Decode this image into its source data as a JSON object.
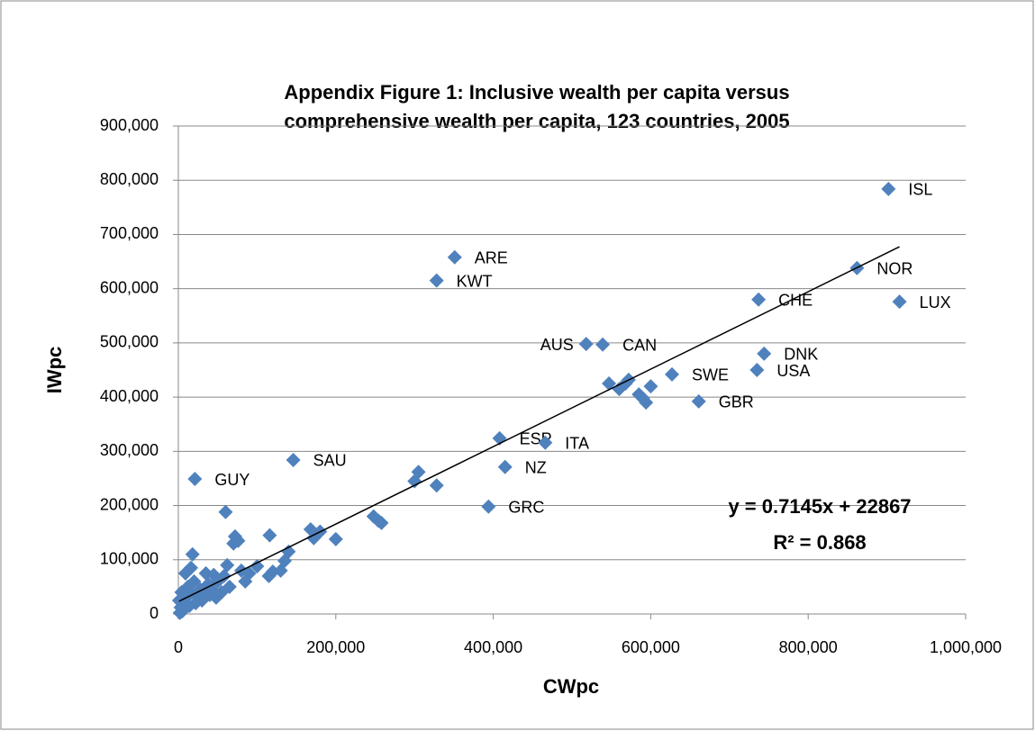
{
  "chart_data": {
    "type": "scatter",
    "title": [
      "Appendix Figure 1:     Inclusive wealth per capita versus",
      "comprehensive wealth per capita, 123 countries, 2005"
    ],
    "x_label": "CWpc",
    "y_label": "IWpc",
    "xlim": [
      0,
      1000000
    ],
    "xticks": [
      {
        "value": 0,
        "label": "0"
      },
      {
        "value": 200000,
        "label": "200,000"
      },
      {
        "value": 400000,
        "label": "400,000"
      },
      {
        "value": 600000,
        "label": "600,000"
      },
      {
        "value": 800000,
        "label": "800,000"
      },
      {
        "value": 1000000,
        "label": "1,000,000"
      }
    ],
    "ylim": [
      0,
      900000
    ],
    "yticks": [
      {
        "value": 0,
        "label": "0"
      },
      {
        "value": 100000,
        "label": "100,000"
      },
      {
        "value": 200000,
        "label": "200,000"
      },
      {
        "value": 300000,
        "label": "300,000"
      },
      {
        "value": 400000,
        "label": "400,000"
      },
      {
        "value": 500000,
        "label": "500,000"
      },
      {
        "value": 600000,
        "label": "600,000"
      },
      {
        "value": 700000,
        "label": "700,000"
      },
      {
        "value": 800000,
        "label": "800,000"
      },
      {
        "value": 900000,
        "label": "900,000"
      }
    ],
    "grid": true,
    "series": [
      {
        "name": "IWpc",
        "color": "#4f81bd",
        "x": [
          902000,
          862000,
          916000,
          737000,
          744000,
          735000,
          627000,
          661000,
          518000,
          539000,
          351000,
          328000,
          408000,
          466000,
          415000,
          394000,
          146000,
          21000,
          547000,
          560000,
          572000,
          568000,
          585000,
          590000,
          594000,
          600000,
          300000,
          305000,
          328000,
          248000,
          254000,
          258000,
          200000,
          180000,
          172000,
          168000,
          140000,
          135000,
          130000,
          120000,
          116000,
          115000,
          100000,
          90000,
          85000,
          80000,
          76000,
          72000,
          70000,
          65000,
          62000,
          60000,
          58000,
          55000,
          50000,
          48000,
          45000,
          42000,
          40000,
          38000,
          35000,
          32000,
          30000,
          28000,
          25000,
          22000,
          20000,
          18000,
          16000,
          15000,
          14000,
          12000,
          10000,
          9000,
          8000,
          6000,
          5000,
          4000,
          3000,
          2000,
          1000
        ],
        "y": [
          784000,
          638000,
          576000,
          580000,
          480000,
          450000,
          442000,
          392000,
          498000,
          497000,
          658000,
          615000,
          324000,
          316000,
          271000,
          198000,
          284000,
          249000,
          425000,
          415000,
          432000,
          425000,
          405000,
          398000,
          390000,
          420000,
          245000,
          262000,
          237000,
          180000,
          172000,
          168000,
          138000,
          152000,
          140000,
          156000,
          115000,
          98000,
          80000,
          78000,
          145000,
          70000,
          88000,
          75000,
          60000,
          80000,
          135000,
          143000,
          130000,
          50000,
          90000,
          188000,
          70000,
          40000,
          60000,
          30000,
          72000,
          45000,
          35000,
          55000,
          75000,
          40000,
          25000,
          45000,
          30000,
          20000,
          60000,
          110000,
          85000,
          40000,
          15000,
          50000,
          30000,
          75000,
          10000,
          20000,
          5000,
          40000,
          12000,
          2000,
          25000
        ],
        "labels": [
          "ISL",
          "NOR",
          "LUX",
          "CHE",
          "DNK",
          "USA",
          "SWE",
          "GBR",
          "AUS",
          "CAN",
          "ARE",
          "KWT",
          "ESP",
          "ITA",
          "NZ",
          "GRC",
          "SAU",
          "GUY",
          null,
          null,
          null,
          null,
          null,
          null,
          null,
          null,
          null,
          null,
          null,
          null,
          null,
          null,
          null,
          null,
          null,
          null,
          null,
          null,
          null,
          null,
          null,
          null,
          null,
          null,
          null,
          null,
          null,
          null,
          null,
          null,
          null,
          null,
          null,
          null,
          null,
          null,
          null,
          null,
          null,
          null,
          null,
          null,
          null,
          null,
          null,
          null,
          null,
          null,
          null,
          null,
          null,
          null,
          null,
          null,
          null,
          null,
          null
        ]
      }
    ],
    "trendline": {
      "slope": 0.7145,
      "intercept": 22867,
      "r2": 0.868,
      "equation_label": "y = 0.7145x + 22867",
      "r2_label": "R² = 0.868",
      "color": "#000000"
    }
  }
}
